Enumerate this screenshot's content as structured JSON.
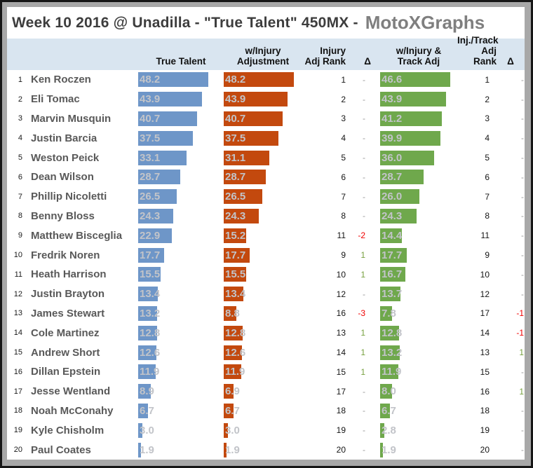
{
  "title": {
    "main": "Week 10 2016 @ Unadilla - \"True Talent\" 450MX  -",
    "brand": "MotoXGraphs"
  },
  "headers": {
    "true_talent": "True Talent",
    "injury_adjustment": "w/Injury\nAdjustment",
    "injury_adj_rank": "Injury\nAdj Rank",
    "delta1": "Δ",
    "track_adjustment": "w/Injury &\nTrack Adj",
    "track_adj_rank": "Inj./Track\nAdj Rank",
    "delta2": "Δ"
  },
  "colors": {
    "true_talent_bar": "#6e96c8",
    "injury_bar": "#c3490e",
    "track_bar": "#6fa84c",
    "header_bg": "#d9e5f0",
    "value_label": "#c2c4c9",
    "delta_positive": "#76a03e",
    "delta_negative": "#f00000"
  },
  "chart_data": {
    "type": "bar",
    "orientation": "horizontal",
    "title": "Week 10 2016 @ Unadilla - \"True Talent\" 450MX - MotoXGraphs",
    "grid": false,
    "legend_position": "none",
    "xlim": [
      0,
      48.2
    ],
    "bar_scale_max": {
      "true_talent": 48.2,
      "injury_adjustment": 48.2,
      "track_adjustment": 46.6
    },
    "categories": [
      "Ken Roczen",
      "Eli Tomac",
      "Marvin Musquin",
      "Justin Barcia",
      "Weston Peick",
      "Dean Wilson",
      "Phillip Nicoletti",
      "Benny Bloss",
      "Matthew Bisceglia",
      "Fredrik Noren",
      "Heath Harrison",
      "Justin Brayton",
      "James Stewart",
      "Cole Martinez",
      "Andrew Short",
      "Dillan Epstein",
      "Jesse Wentland",
      "Noah McConahy",
      "Kyle Chisholm",
      "Paul Coates"
    ],
    "ranks": [
      1,
      2,
      3,
      4,
      5,
      6,
      7,
      8,
      9,
      10,
      11,
      12,
      13,
      14,
      15,
      16,
      17,
      18,
      19,
      20
    ],
    "series": [
      {
        "name": "True Talent",
        "values": [
          48.2,
          43.9,
          40.7,
          37.5,
          33.1,
          28.7,
          26.5,
          24.3,
          22.9,
          17.7,
          15.5,
          13.4,
          13.2,
          12.8,
          12.6,
          11.9,
          8.9,
          6.7,
          3.0,
          1.9
        ]
      },
      {
        "name": "w/Injury Adjustment",
        "values": [
          48.2,
          43.9,
          40.7,
          37.5,
          31.1,
          28.7,
          26.5,
          24.3,
          15.2,
          17.7,
          15.5,
          13.4,
          8.8,
          12.8,
          12.6,
          11.9,
          6.9,
          6.7,
          3.0,
          1.9
        ]
      },
      {
        "name": "w/Injury & Track Adj",
        "values": [
          46.6,
          43.9,
          41.2,
          39.9,
          36.0,
          28.7,
          26.0,
          24.3,
          14.4,
          17.7,
          16.7,
          13.7,
          7.8,
          12.8,
          13.2,
          11.9,
          8.0,
          6.7,
          2.8,
          1.9
        ]
      }
    ],
    "injury_adj_rank": [
      1,
      2,
      3,
      4,
      5,
      6,
      7,
      8,
      11,
      9,
      10,
      12,
      16,
      13,
      14,
      15,
      17,
      18,
      19,
      20
    ],
    "injury_delta": [
      "-",
      "-",
      "-",
      "-",
      "-",
      "-",
      "-",
      "-",
      "-2",
      "1",
      "1",
      "-",
      "-3",
      "1",
      "1",
      "1",
      "-",
      "-",
      "-",
      "-"
    ],
    "track_adj_rank": [
      1,
      2,
      3,
      4,
      5,
      6,
      7,
      8,
      11,
      9,
      10,
      12,
      17,
      14,
      13,
      15,
      16,
      18,
      19,
      20
    ],
    "track_delta": [
      "-",
      "-",
      "-",
      "-",
      "-",
      "-",
      "-",
      "-",
      "-",
      "-",
      "-",
      "-",
      "-1",
      "-1",
      "1",
      "-",
      "1",
      "-",
      "-",
      "-"
    ]
  }
}
